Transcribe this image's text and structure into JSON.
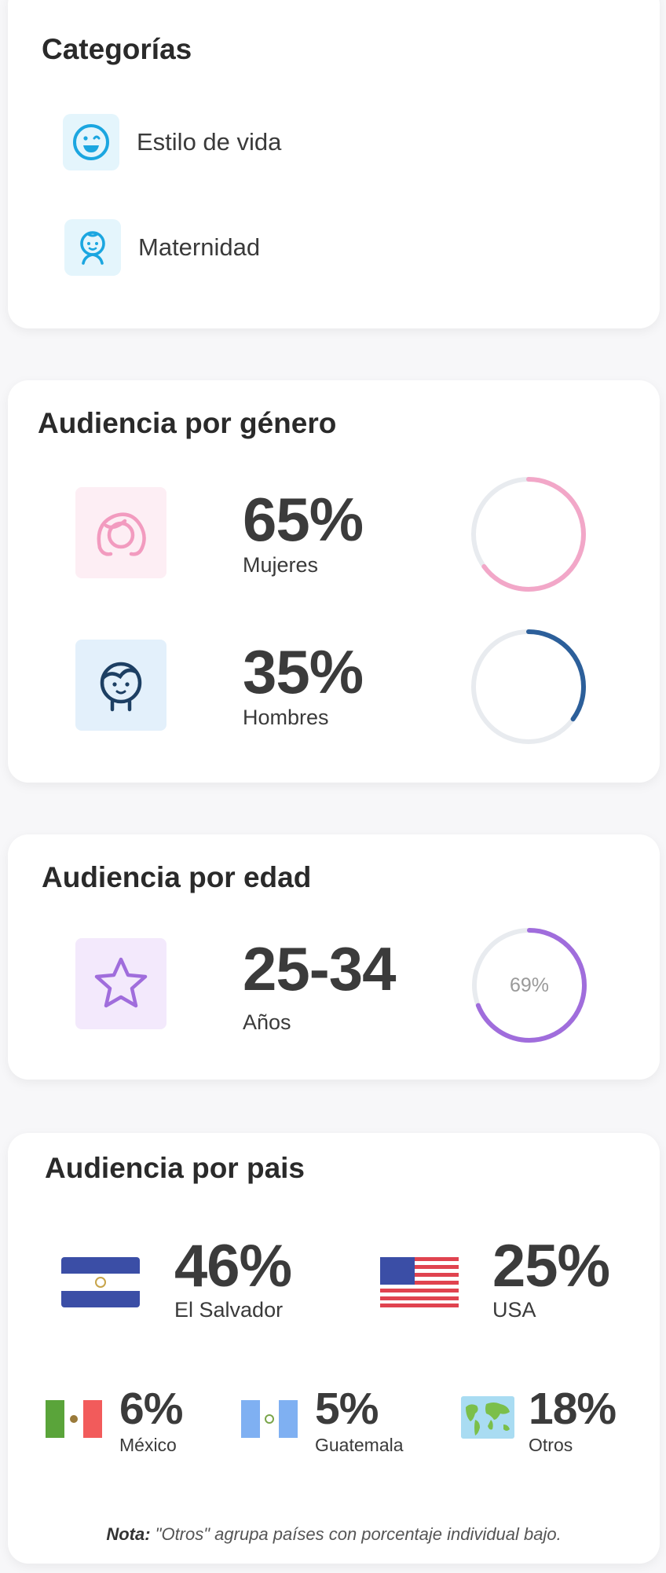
{
  "categories": {
    "title": "Categorías",
    "items": [
      {
        "label": "Estilo de vida",
        "icon": "smiley-icon"
      },
      {
        "label": "Maternidad",
        "icon": "baby-icon"
      }
    ]
  },
  "gender": {
    "title": "Audiencia por género",
    "rows": [
      {
        "value": "65%",
        "label": "Mujeres",
        "percent": 65,
        "color": "#f2a7c8"
      },
      {
        "value": "35%",
        "label": "Hombres",
        "percent": 35,
        "color": "#2c5f9a"
      }
    ]
  },
  "age": {
    "title": "Audiencia por edad",
    "value": "25-34",
    "label": "Años",
    "ring_text": "69%",
    "percent": 69,
    "color": "#a06ddc"
  },
  "country": {
    "title": "Audiencia por pais",
    "items": [
      {
        "value": "46%",
        "label": "El Salvador"
      },
      {
        "value": "25%",
        "label": "USA"
      },
      {
        "value": "6%",
        "label": "México"
      },
      {
        "value": "5%",
        "label": "Guatemala"
      },
      {
        "value": "18%",
        "label": "Otros"
      }
    ],
    "note_bold": "Nota:",
    "note_text": " \"Otros\" agrupa países con porcentaje individual bajo."
  },
  "colors": {
    "track": "#e8ebef",
    "pink_bg": "#fdeef4",
    "blue_bg": "#e3f0fb",
    "purple_bg": "#f3e9fc",
    "cat_icon": "#1ba6e0"
  }
}
